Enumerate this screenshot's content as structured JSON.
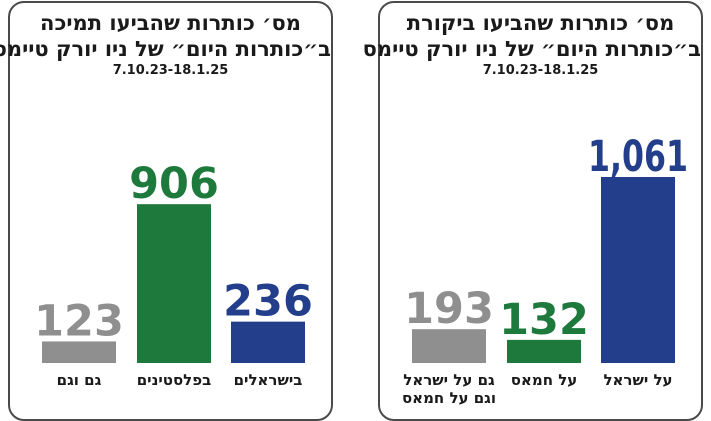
{
  "chart_data": [
    {
      "type": "bar",
      "title": "מס׳ כותרות שהביעו תמיכה",
      "subtitle": "ב״כותרות היום״ של ניו יורק טיימס",
      "date_range": "7.10.23-18.1.25",
      "categories": [
        {
          "lines": [
            "גם וגם"
          ]
        },
        {
          "lines": [
            "בפלסטינים"
          ]
        },
        {
          "lines": [
            "בישראלים"
          ]
        }
      ],
      "values": [
        123,
        906,
        236
      ],
      "value_labels": [
        "123",
        "906",
        "236"
      ],
      "colors": [
        "#8f8f8f",
        "#1e7a3c",
        "#233f8c"
      ],
      "ylim": [
        0,
        1061
      ]
    },
    {
      "type": "bar",
      "title": "מס׳ כותרות שהביעו ביקורת",
      "subtitle": "ב״כותרות היום״ של ניו יורק טיימס",
      "date_range": "7.10.23-18.1.25",
      "categories": [
        {
          "lines": [
            "גם על ישראל",
            "וגם על חמאס"
          ]
        },
        {
          "lines": [
            "על חמאס"
          ]
        },
        {
          "lines": [
            "על ישראל"
          ]
        }
      ],
      "values": [
        193,
        132,
        1061
      ],
      "value_labels": [
        "193",
        "132",
        "1,061"
      ],
      "colors": [
        "#8f8f8f",
        "#1e7a3c",
        "#233f8c"
      ],
      "ylim": [
        0,
        1061
      ]
    }
  ]
}
